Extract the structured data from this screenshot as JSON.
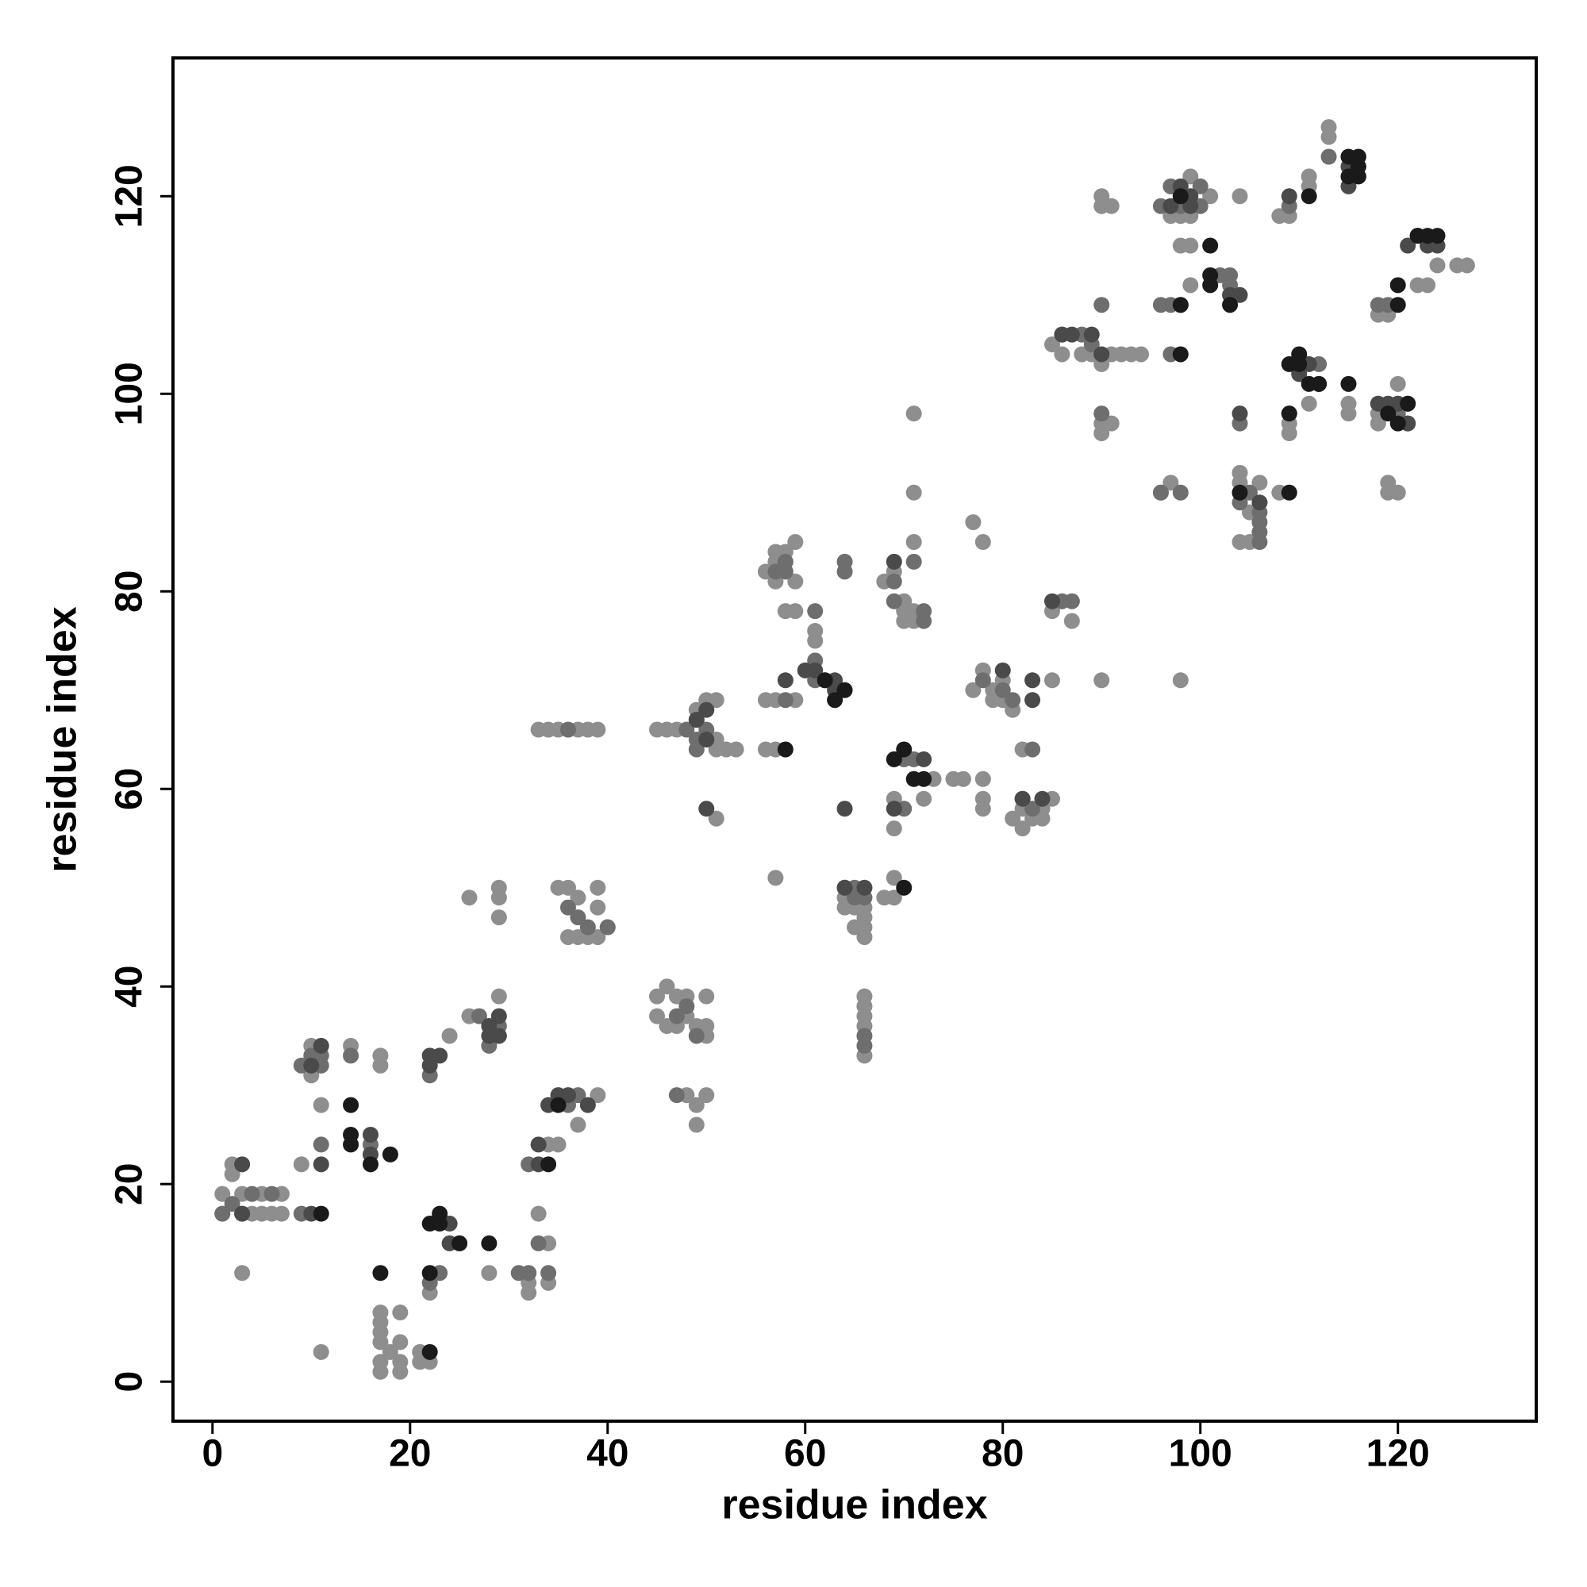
{
  "chart_data": {
    "type": "scatter",
    "x_label": "residue index",
    "y_label": "residue index",
    "xlim": [
      -4,
      134
    ],
    "ylim": [
      -4,
      134
    ],
    "xticks": [
      0,
      20,
      40,
      60,
      80,
      100,
      120
    ],
    "yticks": [
      0,
      20,
      40,
      60,
      80,
      100,
      120
    ],
    "series": [
      {
        "color": "#8e8e8e",
        "x": [
          1,
          1,
          2,
          2,
          3,
          3,
          4,
          5,
          5,
          6,
          7,
          7,
          9,
          10,
          10,
          11,
          11,
          14,
          17,
          17,
          17,
          17,
          17,
          17,
          17,
          17,
          18,
          19,
          19,
          19,
          19,
          21,
          21,
          22,
          22,
          24,
          26,
          26,
          28,
          29,
          29,
          29,
          29,
          32,
          32,
          33,
          34,
          34,
          34,
          35,
          33,
          34,
          35,
          37,
          38,
          39,
          35,
          36,
          37,
          39,
          39,
          36,
          37,
          38,
          39,
          40,
          39,
          37,
          45,
          45,
          46,
          47,
          48,
          49,
          48,
          47,
          46,
          49,
          49,
          48,
          50,
          50,
          50,
          50,
          45,
          46,
          47,
          49,
          50,
          51,
          51,
          51,
          52,
          53,
          51,
          56,
          57,
          57,
          57,
          58,
          59,
          59,
          58,
          59,
          56,
          57,
          59,
          56,
          57,
          57,
          61,
          61,
          64,
          64,
          64,
          65,
          65,
          66,
          66,
          66,
          66,
          66,
          66,
          66,
          66,
          66,
          68,
          69,
          69,
          69,
          68,
          69,
          69,
          70,
          70,
          70,
          71,
          71,
          71,
          71,
          71,
          72,
          73,
          75,
          76,
          77,
          78,
          78,
          78,
          78,
          77,
          78,
          79,
          79,
          80,
          80,
          81,
          81,
          82,
          82,
          83,
          84,
          82,
          85,
          85,
          87,
          85,
          84,
          85,
          86,
          86,
          88,
          89,
          90,
          91,
          92,
          93,
          94,
          90,
          90,
          91,
          90,
          90,
          91,
          90,
          98,
          96,
          97,
          97,
          98,
          99,
          98,
          99,
          98,
          99,
          99,
          101,
          104,
          104,
          105,
          105,
          104,
          104,
          106,
          108,
          108,
          109,
          109,
          109,
          111,
          111,
          111,
          113,
          113,
          115,
          115,
          118,
          118,
          118,
          118,
          119,
          119,
          119,
          120,
          121,
          122,
          123,
          124,
          126,
          127,
          120
        ],
        "values": [
          19,
          17,
          22,
          21,
          11,
          19,
          17,
          19,
          17,
          17,
          19,
          17,
          22,
          31,
          34,
          28,
          3,
          34,
          33,
          32,
          1,
          2,
          4,
          5,
          6,
          7,
          3,
          1,
          2,
          4,
          7,
          3,
          2,
          2,
          9,
          35,
          37,
          49,
          11,
          39,
          49,
          50,
          47,
          9,
          10,
          17,
          14,
          24,
          10,
          24,
          66,
          66,
          66,
          66,
          66,
          66,
          50,
          50,
          49,
          50,
          48,
          45,
          45,
          45,
          45,
          46,
          29,
          26,
          39,
          37,
          40,
          39,
          39,
          36,
          37,
          36,
          36,
          26,
          28,
          29,
          29,
          39,
          35,
          36,
          66,
          66,
          66,
          68,
          69,
          69,
          65,
          64,
          64,
          64,
          57,
          82,
          84,
          83,
          81,
          84,
          85,
          81,
          78,
          78,
          69,
          69,
          69,
          64,
          64,
          51,
          76,
          75,
          50,
          49,
          48,
          48,
          46,
          45,
          46,
          47,
          48,
          39,
          38,
          37,
          36,
          33,
          81,
          82,
          51,
          49,
          49,
          56,
          59,
          79,
          78,
          77,
          78,
          85,
          90,
          98,
          77,
          59,
          61,
          61,
          61,
          87,
          85,
          58,
          59,
          61,
          70,
          72,
          70,
          69,
          69,
          71,
          68,
          57,
          56,
          58,
          57,
          57,
          64,
          71,
          78,
          77,
          59,
          58,
          105,
          104,
          106,
          104,
          104,
          103,
          104,
          104,
          104,
          104,
          120,
          119,
          119,
          97,
          96,
          97,
          71,
          71,
          90,
          91,
          118,
          120,
          122,
          118,
          118,
          115,
          115,
          111,
          120,
          120,
          85,
          85,
          88,
          91,
          92,
          91,
          90,
          118,
          118,
          97,
          96,
          121,
          122,
          99,
          127,
          126,
          99,
          98,
          97,
          98,
          99,
          108,
          108,
          91,
          90,
          90,
          97,
          111,
          111,
          113,
          113,
          113,
          101
        ]
      },
      {
        "color": "#6e6e6e",
        "x": [
          1,
          2,
          3,
          4,
          6,
          9,
          10,
          11,
          9,
          11,
          11,
          14,
          16,
          22,
          23,
          22,
          25,
          28,
          29,
          27,
          32,
          31,
          32,
          33,
          34,
          36,
          37,
          36,
          37,
          38,
          40,
          36,
          47,
          48,
          49,
          47,
          48,
          49,
          49,
          50,
          49,
          57,
          58,
          58,
          58,
          61,
          61,
          61,
          62,
          64,
          64,
          65,
          65,
          66,
          66,
          66,
          69,
          69,
          70,
          71,
          71,
          72,
          72,
          70,
          78,
          80,
          81,
          82,
          83,
          83,
          86,
          87,
          88,
          89,
          90,
          90,
          96,
          96,
          97,
          97,
          97,
          98,
          96,
          98,
          100,
          100,
          102,
          103,
          103,
          104,
          104,
          104,
          106,
          106,
          106,
          106,
          105,
          109,
          109,
          112,
          113,
          119,
          118,
          120,
          121,
          120
        ],
        "values": [
          17,
          18,
          17,
          19,
          19,
          32,
          33,
          33,
          17,
          32,
          24,
          33,
          24,
          31,
          11,
          10,
          14,
          34,
          36,
          37,
          22,
          11,
          11,
          14,
          11,
          28,
          29,
          48,
          47,
          46,
          46,
          66,
          37,
          38,
          35,
          29,
          66,
          64,
          67,
          66,
          65,
          82,
          83,
          82,
          69,
          78,
          73,
          71,
          71,
          83,
          82,
          50,
          49,
          49,
          34,
          35,
          81,
          79,
          63,
          63,
          83,
          77,
          78,
          58,
          71,
          70,
          69,
          59,
          58,
          64,
          79,
          79,
          106,
          105,
          109,
          98,
          119,
          109,
          109,
          104,
          121,
          119,
          90,
          90,
          121,
          119,
          112,
          112,
          111,
          97,
          89,
          90,
          85,
          86,
          87,
          88,
          90,
          119,
          98,
          103,
          124,
          109,
          109,
          98,
          99,
          99
        ]
      },
      {
        "color": "#4a4a4a",
        "x": [
          3,
          3,
          10,
          11,
          10,
          11,
          16,
          16,
          22,
          22,
          23,
          24,
          24,
          28,
          28,
          29,
          29,
          33,
          33,
          34,
          35,
          36,
          38,
          49,
          50,
          50,
          50,
          58,
          60,
          61,
          63,
          63,
          64,
          64,
          66,
          69,
          69,
          72,
          80,
          82,
          83,
          83,
          84,
          85,
          86,
          87,
          89,
          90,
          97,
          98,
          99,
          99,
          98,
          103,
          104,
          104,
          106,
          110,
          112,
          111,
          109,
          115,
          115,
          122,
          121,
          123,
          124,
          119,
          118,
          120,
          121
        ],
        "values": [
          22,
          17,
          17,
          34,
          32,
          22,
          25,
          23,
          32,
          33,
          33,
          16,
          14,
          36,
          35,
          37,
          35,
          24,
          22,
          28,
          29,
          29,
          28,
          67,
          68,
          65,
          58,
          71,
          72,
          72,
          71,
          70,
          58,
          50,
          50,
          83,
          58,
          63,
          72,
          59,
          69,
          71,
          59,
          79,
          106,
          106,
          106,
          104,
          119,
          121,
          120,
          119,
          109,
          110,
          110,
          98,
          89,
          102,
          101,
          103,
          120,
          123,
          121,
          116,
          115,
          115,
          115,
          99,
          99,
          99,
          97
        ]
      },
      {
        "color": "#1a1a1a",
        "x": [
          11,
          14,
          14,
          14,
          16,
          17,
          18,
          22,
          22,
          23,
          23,
          25,
          28,
          22,
          34,
          35,
          58,
          62,
          64,
          63,
          69,
          70,
          70,
          72,
          71,
          98,
          98,
          98,
          101,
          101,
          101,
          103,
          104,
          109,
          109,
          109,
          110,
          110,
          111,
          112,
          111,
          115,
          115,
          116,
          116,
          116,
          115,
          122,
          123,
          124,
          120,
          120,
          119,
          120,
          121
        ],
        "values": [
          17,
          28,
          25,
          24,
          22,
          11,
          23,
          16,
          11,
          17,
          16,
          14,
          14,
          3,
          22,
          28,
          64,
          71,
          70,
          69,
          63,
          64,
          50,
          61,
          61,
          104,
          109,
          120,
          115,
          112,
          111,
          109,
          90,
          103,
          98,
          90,
          103,
          104,
          101,
          101,
          120,
          101,
          124,
          123,
          124,
          122,
          122,
          116,
          116,
          116,
          111,
          109,
          98,
          97,
          99
        ]
      }
    ]
  }
}
